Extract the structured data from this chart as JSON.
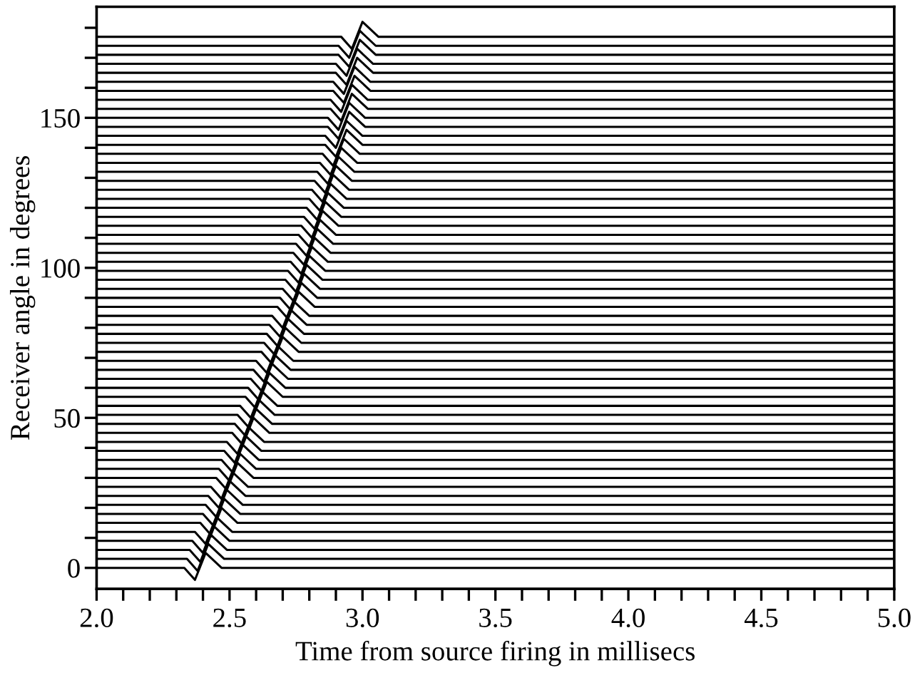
{
  "chart_data": {
    "type": "line",
    "xlabel": "Time from source firing in millisecs",
    "ylabel": "Receiver angle in degrees",
    "color": "#000000",
    "grid": false,
    "legend": false,
    "xlim": [
      2.0,
      5.0
    ],
    "ylim": [
      -7,
      187
    ],
    "xticks": [
      {
        "value": 2.0,
        "label": "2.0"
      },
      {
        "value": 2.1,
        "label": null
      },
      {
        "value": 2.2,
        "label": null
      },
      {
        "value": 2.3,
        "label": null
      },
      {
        "value": 2.4,
        "label": null
      },
      {
        "value": 2.5,
        "label": "2.5"
      },
      {
        "value": 2.6,
        "label": null
      },
      {
        "value": 2.7,
        "label": null
      },
      {
        "value": 2.8,
        "label": null
      },
      {
        "value": 2.9,
        "label": null
      },
      {
        "value": 3.0,
        "label": "3.0"
      },
      {
        "value": 3.1,
        "label": null
      },
      {
        "value": 3.2,
        "label": null
      },
      {
        "value": 3.3,
        "label": null
      },
      {
        "value": 3.4,
        "label": null
      },
      {
        "value": 3.5,
        "label": "3.5"
      },
      {
        "value": 3.6,
        "label": null
      },
      {
        "value": 3.7,
        "label": null
      },
      {
        "value": 3.8,
        "label": null
      },
      {
        "value": 3.9,
        "label": null
      },
      {
        "value": 4.0,
        "label": "4.0"
      },
      {
        "value": 4.1,
        "label": null
      },
      {
        "value": 4.2,
        "label": null
      },
      {
        "value": 4.3,
        "label": null
      },
      {
        "value": 4.4,
        "label": null
      },
      {
        "value": 4.5,
        "label": "4.5"
      },
      {
        "value": 4.6,
        "label": null
      },
      {
        "value": 4.7,
        "label": null
      },
      {
        "value": 4.8,
        "label": null
      },
      {
        "value": 4.9,
        "label": null
      },
      {
        "value": 5.0,
        "label": "5.0"
      }
    ],
    "yticks": [
      0,
      {
        "value": 10,
        "label": null
      },
      {
        "value": 20,
        "label": null
      },
      {
        "value": 30,
        "label": null
      },
      {
        "value": 40,
        "label": null
      },
      50,
      {
        "value": 60,
        "label": null
      },
      {
        "value": 70,
        "label": null
      },
      {
        "value": 80,
        "label": null
      },
      {
        "value": 90,
        "label": null
      },
      100,
      {
        "value": 110,
        "label": null
      },
      {
        "value": 120,
        "label": null
      },
      {
        "value": 130,
        "label": null
      },
      {
        "value": 140,
        "label": null
      },
      150,
      {
        "value": 160,
        "label": null
      },
      {
        "value": 170,
        "label": null
      },
      {
        "value": 180,
        "label": null
      }
    ],
    "series": [
      {
        "x": [
          2.0,
          2.33,
          2.37,
          2.41,
          2.47,
          5.0
        ],
        "values": [
          0,
          0,
          -4,
          5,
          0,
          0
        ]
      },
      {
        "x": [
          2.0,
          2.34,
          2.38,
          2.42,
          2.48,
          5.0
        ],
        "values": [
          3,
          3,
          -1,
          8,
          3,
          3
        ]
      },
      {
        "x": [
          2.0,
          2.35,
          2.39,
          2.43,
          2.49,
          5.0
        ],
        "values": [
          6,
          6,
          2,
          11,
          6,
          6
        ]
      },
      {
        "x": [
          2.0,
          2.36,
          2.4,
          2.44,
          2.5,
          5.0
        ],
        "values": [
          9,
          9,
          5,
          14,
          9,
          9
        ]
      },
      {
        "x": [
          2.0,
          2.37,
          2.41,
          2.45,
          2.51,
          5.0
        ],
        "values": [
          12,
          12,
          8,
          17,
          12,
          12
        ]
      },
      {
        "x": [
          2.0,
          2.39,
          2.43,
          2.47,
          2.53,
          5.0
        ],
        "values": [
          15,
          15,
          11,
          20,
          15,
          15
        ]
      },
      {
        "x": [
          2.0,
          2.4,
          2.44,
          2.48,
          2.54,
          5.0
        ],
        "values": [
          18,
          18,
          14,
          23,
          18,
          18
        ]
      },
      {
        "x": [
          2.0,
          2.41,
          2.45,
          2.49,
          2.55,
          5.0
        ],
        "values": [
          21,
          21,
          17,
          26,
          21,
          21
        ]
      },
      {
        "x": [
          2.0,
          2.42,
          2.46,
          2.5,
          2.56,
          5.0
        ],
        "values": [
          24,
          24,
          20,
          29,
          24,
          24
        ]
      },
      {
        "x": [
          2.0,
          2.43,
          2.47,
          2.51,
          2.57,
          5.0
        ],
        "values": [
          27,
          27,
          23,
          32,
          27,
          27
        ]
      },
      {
        "x": [
          2.0,
          2.45,
          2.49,
          2.53,
          2.59,
          5.0
        ],
        "values": [
          30,
          30,
          26,
          35,
          30,
          30
        ]
      },
      {
        "x": [
          2.0,
          2.46,
          2.5,
          2.54,
          2.6,
          5.0
        ],
        "values": [
          33,
          33,
          29,
          38,
          33,
          33
        ]
      },
      {
        "x": [
          2.0,
          2.47,
          2.51,
          2.55,
          2.61,
          5.0
        ],
        "values": [
          36,
          36,
          32,
          41,
          36,
          36
        ]
      },
      {
        "x": [
          2.0,
          2.48,
          2.52,
          2.56,
          2.62,
          5.0
        ],
        "values": [
          39,
          39,
          35,
          44,
          39,
          39
        ]
      },
      {
        "x": [
          2.0,
          2.49,
          2.53,
          2.57,
          2.63,
          5.0
        ],
        "values": [
          42,
          42,
          38,
          47,
          42,
          42
        ]
      },
      {
        "x": [
          2.0,
          2.51,
          2.55,
          2.59,
          2.65,
          5.0
        ],
        "values": [
          45,
          45,
          41,
          50,
          45,
          45
        ]
      },
      {
        "x": [
          2.0,
          2.52,
          2.56,
          2.6,
          2.66,
          5.0
        ],
        "values": [
          48,
          48,
          44,
          53,
          48,
          48
        ]
      },
      {
        "x": [
          2.0,
          2.53,
          2.57,
          2.61,
          2.67,
          5.0
        ],
        "values": [
          51,
          51,
          47,
          56,
          51,
          51
        ]
      },
      {
        "x": [
          2.0,
          2.54,
          2.58,
          2.62,
          2.68,
          5.0
        ],
        "values": [
          54,
          54,
          50,
          59,
          54,
          54
        ]
      },
      {
        "x": [
          2.0,
          2.56,
          2.6,
          2.64,
          2.7,
          5.0
        ],
        "values": [
          57,
          57,
          53,
          62,
          57,
          57
        ]
      },
      {
        "x": [
          2.0,
          2.57,
          2.61,
          2.65,
          2.71,
          5.0
        ],
        "values": [
          60,
          60,
          56,
          65,
          60,
          60
        ]
      },
      {
        "x": [
          2.0,
          2.58,
          2.62,
          2.66,
          2.72,
          5.0
        ],
        "values": [
          63,
          63,
          59,
          68,
          63,
          63
        ]
      },
      {
        "x": [
          2.0,
          2.59,
          2.63,
          2.67,
          2.73,
          5.0
        ],
        "values": [
          66,
          66,
          62,
          71,
          66,
          66
        ]
      },
      {
        "x": [
          2.0,
          2.6,
          2.64,
          2.68,
          2.74,
          5.0
        ],
        "values": [
          69,
          69,
          65,
          74,
          69,
          69
        ]
      },
      {
        "x": [
          2.0,
          2.62,
          2.66,
          2.7,
          2.76,
          5.0
        ],
        "values": [
          72,
          72,
          68,
          77,
          72,
          72
        ]
      },
      {
        "x": [
          2.0,
          2.63,
          2.67,
          2.71,
          2.77,
          5.0
        ],
        "values": [
          75,
          75,
          71,
          80,
          75,
          75
        ]
      },
      {
        "x": [
          2.0,
          2.64,
          2.68,
          2.72,
          2.78,
          5.0
        ],
        "values": [
          78,
          78,
          74,
          83,
          78,
          78
        ]
      },
      {
        "x": [
          2.0,
          2.65,
          2.69,
          2.73,
          2.79,
          5.0
        ],
        "values": [
          81,
          81,
          77,
          86,
          81,
          81
        ]
      },
      {
        "x": [
          2.0,
          2.66,
          2.7,
          2.74,
          2.8,
          5.0
        ],
        "values": [
          84,
          84,
          80,
          89,
          84,
          84
        ]
      },
      {
        "x": [
          2.0,
          2.68,
          2.72,
          2.76,
          2.82,
          5.0
        ],
        "values": [
          87,
          87,
          83,
          92,
          87,
          87
        ]
      },
      {
        "x": [
          2.0,
          2.69,
          2.73,
          2.77,
          2.83,
          5.0
        ],
        "values": [
          90,
          90,
          86,
          95,
          90,
          90
        ]
      },
      {
        "x": [
          2.0,
          2.7,
          2.74,
          2.78,
          2.84,
          5.0
        ],
        "values": [
          93,
          93,
          89,
          98,
          93,
          93
        ]
      },
      {
        "x": [
          2.0,
          2.71,
          2.75,
          2.79,
          2.85,
          5.0
        ],
        "values": [
          96,
          96,
          92,
          101,
          96,
          96
        ]
      },
      {
        "x": [
          2.0,
          2.72,
          2.76,
          2.8,
          2.86,
          5.0
        ],
        "values": [
          99,
          99,
          95,
          104,
          99,
          99
        ]
      },
      {
        "x": [
          2.0,
          2.73,
          2.77,
          2.81,
          2.87,
          5.0
        ],
        "values": [
          102,
          102,
          98,
          107,
          102,
          102
        ]
      },
      {
        "x": [
          2.0,
          2.74,
          2.78,
          2.82,
          2.88,
          5.0
        ],
        "values": [
          105,
          105,
          101,
          110,
          105,
          105
        ]
      },
      {
        "x": [
          2.0,
          2.75,
          2.79,
          2.83,
          2.89,
          5.0
        ],
        "values": [
          108,
          108,
          104,
          113,
          108,
          108
        ]
      },
      {
        "x": [
          2.0,
          2.76,
          2.8,
          2.84,
          2.9,
          5.0
        ],
        "values": [
          111,
          111,
          107,
          116,
          111,
          111
        ]
      },
      {
        "x": [
          2.0,
          2.77,
          2.81,
          2.85,
          2.91,
          5.0
        ],
        "values": [
          114,
          114,
          110,
          119,
          114,
          114
        ]
      },
      {
        "x": [
          2.0,
          2.78,
          2.82,
          2.86,
          2.92,
          5.0
        ],
        "values": [
          117,
          117,
          113,
          122,
          117,
          117
        ]
      },
      {
        "x": [
          2.0,
          2.79,
          2.83,
          2.87,
          2.93,
          5.0
        ],
        "values": [
          120,
          120,
          116,
          125,
          120,
          120
        ]
      },
      {
        "x": [
          2.0,
          2.8,
          2.84,
          2.88,
          2.94,
          5.0
        ],
        "values": [
          123,
          123,
          119,
          128,
          123,
          123
        ]
      },
      {
        "x": [
          2.0,
          2.81,
          2.85,
          2.89,
          2.95,
          5.0
        ],
        "values": [
          126,
          126,
          122,
          131,
          126,
          126
        ]
      },
      {
        "x": [
          2.0,
          2.82,
          2.86,
          2.9,
          2.96,
          5.0
        ],
        "values": [
          129,
          129,
          125,
          134,
          129,
          129
        ]
      },
      {
        "x": [
          2.0,
          2.83,
          2.87,
          2.91,
          2.97,
          5.0
        ],
        "values": [
          132,
          132,
          128,
          137,
          132,
          132
        ]
      },
      {
        "x": [
          2.0,
          2.84,
          2.88,
          2.92,
          2.98,
          5.0
        ],
        "values": [
          135,
          135,
          131,
          140,
          135,
          135
        ]
      },
      {
        "x": [
          2.0,
          2.85,
          2.89,
          2.93,
          2.99,
          5.0
        ],
        "values": [
          138,
          138,
          134,
          143,
          138,
          138
        ]
      },
      {
        "x": [
          2.0,
          2.86,
          2.9,
          2.94,
          3.0,
          5.0
        ],
        "values": [
          141,
          141,
          137,
          146,
          141,
          141
        ]
      },
      {
        "x": [
          2.0,
          2.86,
          2.9,
          2.94,
          3.0,
          5.0
        ],
        "values": [
          144,
          144,
          140,
          149,
          144,
          144
        ]
      },
      {
        "x": [
          2.0,
          2.87,
          2.91,
          2.95,
          3.01,
          5.0
        ],
        "values": [
          147,
          147,
          143,
          152,
          147,
          147
        ]
      },
      {
        "x": [
          2.0,
          2.87,
          2.91,
          2.95,
          3.01,
          5.0
        ],
        "values": [
          150,
          150,
          146,
          155,
          150,
          150
        ]
      },
      {
        "x": [
          2.0,
          2.88,
          2.92,
          2.96,
          3.02,
          5.0
        ],
        "values": [
          153,
          153,
          149,
          158,
          153,
          153
        ]
      },
      {
        "x": [
          2.0,
          2.88,
          2.92,
          2.96,
          3.02,
          5.0
        ],
        "values": [
          156,
          156,
          152,
          161,
          156,
          156
        ]
      },
      {
        "x": [
          2.0,
          2.89,
          2.93,
          2.97,
          3.03,
          5.0
        ],
        "values": [
          159,
          159,
          155,
          164,
          159,
          159
        ]
      },
      {
        "x": [
          2.0,
          2.89,
          2.93,
          2.97,
          3.03,
          5.0
        ],
        "values": [
          162,
          162,
          158,
          167,
          162,
          162
        ]
      },
      {
        "x": [
          2.0,
          2.9,
          2.94,
          2.98,
          3.04,
          5.0
        ],
        "values": [
          165,
          165,
          161,
          170,
          165,
          165
        ]
      },
      {
        "x": [
          2.0,
          2.9,
          2.94,
          2.98,
          3.04,
          5.0
        ],
        "values": [
          168,
          168,
          164,
          173,
          168,
          168
        ]
      },
      {
        "x": [
          2.0,
          2.91,
          2.95,
          2.99,
          3.05,
          5.0
        ],
        "values": [
          171,
          171,
          167,
          176,
          171,
          171
        ]
      },
      {
        "x": [
          2.0,
          2.91,
          2.95,
          2.99,
          3.05,
          5.0
        ],
        "values": [
          174,
          174,
          170,
          179,
          174,
          174
        ]
      },
      {
        "x": [
          2.0,
          2.92,
          2.96,
          3.0,
          3.06,
          5.0
        ],
        "values": [
          177,
          177,
          173,
          182,
          177,
          177
        ]
      }
    ]
  }
}
